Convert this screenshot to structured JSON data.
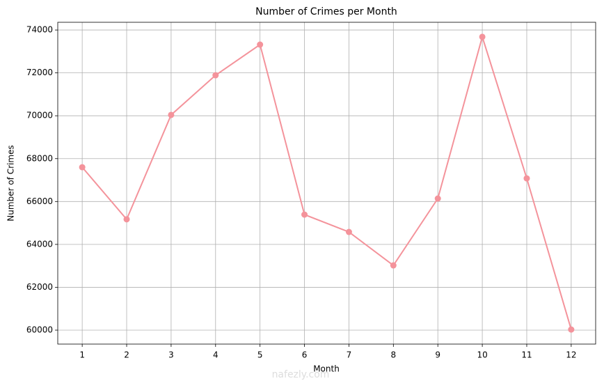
{
  "chart_data": {
    "type": "line",
    "title": "Number of Crimes per Month",
    "x_label": "Month",
    "y_label": "Number of Crimes",
    "x": [
      1,
      2,
      3,
      4,
      5,
      6,
      7,
      8,
      9,
      10,
      11,
      12
    ],
    "series": [
      {
        "name": "Number of Crimes",
        "color": "#f4939b",
        "values": [
          67600,
          65170,
          70040,
          71890,
          73320,
          65390,
          64580,
          63020,
          66140,
          73680,
          67080,
          60030
        ]
      }
    ],
    "xlim": [
      0.45,
      12.55
    ],
    "xticks": [
      1,
      2,
      3,
      4,
      5,
      6,
      7,
      8,
      9,
      10,
      11,
      12
    ],
    "ylim": [
      59350,
      74360
    ],
    "yticks": [
      60000,
      62000,
      64000,
      66000,
      68000,
      70000,
      72000,
      74000
    ],
    "grid": true,
    "watermark": "nafezly.com"
  }
}
